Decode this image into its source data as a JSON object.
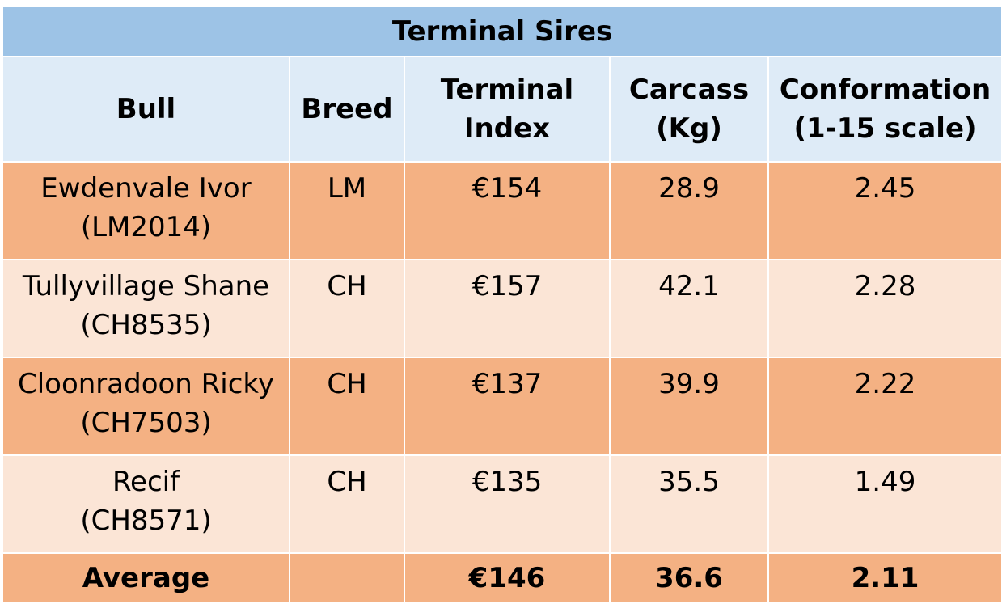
{
  "table": {
    "title": "Terminal Sires",
    "headers": {
      "bull": "Bull",
      "breed": "Breed",
      "terminal_index_line1": "Terminal",
      "terminal_index_line2": "Index",
      "carcass_line1": "Carcass",
      "carcass_line2": "(Kg)",
      "conformation_line1": "Conformation",
      "conformation_line2": "(1-15 scale)"
    },
    "rows": [
      {
        "name": "Ewdenvale Ivor",
        "code": "(LM2014)",
        "breed": "LM",
        "terminal_index": "€154",
        "carcass": "28.9",
        "conformation": "2.45"
      },
      {
        "name": "Tullyvillage Shane",
        "code": "(CH8535)",
        "breed": "CH",
        "terminal_index": "€157",
        "carcass": "42.1",
        "conformation": "2.28"
      },
      {
        "name": "Cloonradoon Ricky",
        "code": "(CH7503)",
        "breed": "CH",
        "terminal_index": "€137",
        "carcass": "39.9",
        "conformation": "2.22"
      },
      {
        "name": "Recif",
        "code": "(CH8571)",
        "breed": "CH",
        "terminal_index": "€135",
        "carcass": "35.5",
        "conformation": "1.49"
      }
    ],
    "average": {
      "label": "Average",
      "breed": "",
      "terminal_index": "€146",
      "carcass": "36.6",
      "conformation": "2.11"
    },
    "colors": {
      "title_bg": "#9dc3e6",
      "header_bg": "#deebf7",
      "row_dark_bg": "#f4b183",
      "row_light_bg": "#fbe5d6"
    }
  }
}
